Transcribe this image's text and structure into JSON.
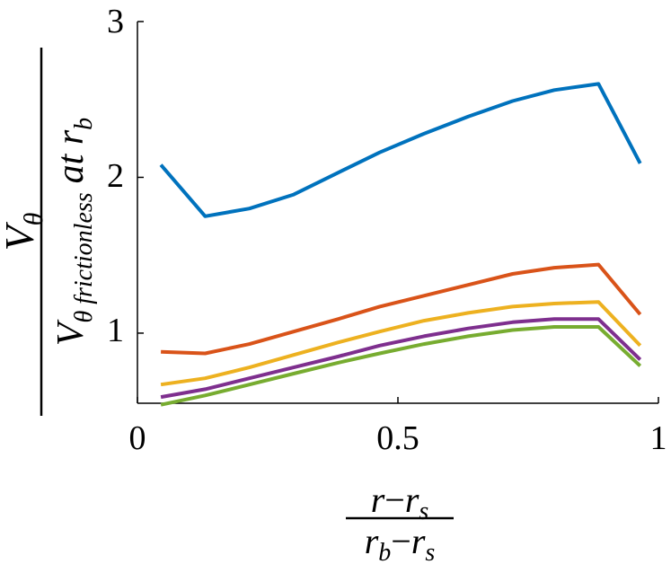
{
  "chart_data": {
    "type": "line",
    "title": "",
    "xlabel": {
      "numerator": "r−rₛ",
      "denominator": "r_b−r_s",
      "num_r1": "r",
      "num_minus": "−",
      "num_r2": "r",
      "num_sub": "s",
      "den_r1": "r",
      "den_sub1": "b",
      "den_minus": "−",
      "den_r2": "r",
      "den_sub2": "s"
    },
    "ylabel": {
      "num_V": "V",
      "num_sub": "θ",
      "den_V": "V",
      "den_sub": "θ frictionless",
      "den_suffix": "at r",
      "den_suffix_sub": "b"
    },
    "xlim": [
      0,
      1
    ],
    "ylim": [
      0.55,
      3
    ],
    "xticks": [
      0,
      0.5,
      1
    ],
    "xtick_labels": [
      "0",
      "0.5",
      "1"
    ],
    "yticks": [
      1,
      2,
      3
    ],
    "ytick_labels": [
      "1",
      "2",
      "3"
    ],
    "grid": false,
    "x": [
      0.045,
      0.13,
      0.215,
      0.3,
      0.385,
      0.465,
      0.55,
      0.635,
      0.72,
      0.8,
      0.885,
      0.965
    ],
    "series": [
      {
        "name": "series-1",
        "color": "#0072BD",
        "values": [
          2.08,
          1.75,
          1.8,
          1.89,
          2.03,
          2.16,
          2.28,
          2.39,
          2.49,
          2.56,
          2.6,
          2.09
        ]
      },
      {
        "name": "series-2",
        "color": "#D95319",
        "values": [
          0.88,
          0.87,
          0.93,
          1.01,
          1.09,
          1.17,
          1.24,
          1.31,
          1.38,
          1.42,
          1.44,
          1.12
        ]
      },
      {
        "name": "series-3",
        "color": "#EDB120",
        "values": [
          0.67,
          0.71,
          0.78,
          0.86,
          0.94,
          1.01,
          1.08,
          1.13,
          1.17,
          1.19,
          1.2,
          0.92
        ]
      },
      {
        "name": "series-4",
        "color": "#7E2F8E",
        "values": [
          0.59,
          0.64,
          0.71,
          0.78,
          0.85,
          0.92,
          0.98,
          1.03,
          1.07,
          1.09,
          1.09,
          0.83
        ]
      },
      {
        "name": "series-5",
        "color": "#77AC30",
        "values": [
          0.54,
          0.6,
          0.67,
          0.74,
          0.81,
          0.87,
          0.93,
          0.98,
          1.02,
          1.04,
          1.04,
          0.79
        ]
      }
    ]
  }
}
